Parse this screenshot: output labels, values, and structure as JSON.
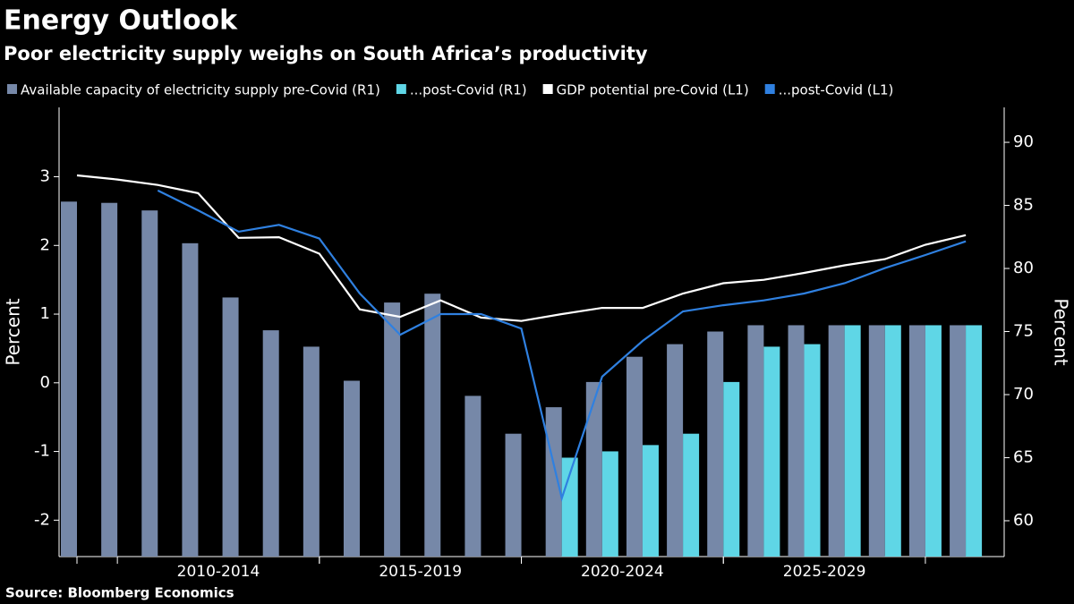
{
  "chart_data": {
    "type": "bar_line",
    "title": "Energy Outlook",
    "subtitle": "Poor electricity supply weighs on South Africa’s productivity",
    "source": "Source: Bloomberg Economics",
    "ylabel": "Percent",
    "y2label": "Percent",
    "categories": [
      null,
      null,
      null,
      null,
      null,
      null,
      null,
      null,
      null,
      null,
      null,
      null,
      null,
      null,
      null,
      null,
      null,
      null,
      null,
      null,
      null,
      null,
      null
    ],
    "x_groups": [
      "2010-2014",
      "2015-2019",
      "2020-2024",
      "2025-2029"
    ],
    "series": [
      {
        "name": "Available capacity of electricity supply pre-Covid (R1)",
        "kind": "bar",
        "axis": "y2",
        "color": "#7688a8",
        "values": [
          85.3,
          85.2,
          84.6,
          82.0,
          77.7,
          75.1,
          73.8,
          71.1,
          77.3,
          78.0,
          69.9,
          66.9,
          69.0,
          71.0,
          73.0,
          74.0,
          75.0,
          75.5,
          75.5,
          75.5,
          75.5,
          75.5,
          75.5
        ]
      },
      {
        "name": "...post-Covid (R1)",
        "kind": "bar",
        "axis": "y2",
        "color": "#5fd6e6",
        "values": [
          null,
          null,
          null,
          null,
          null,
          null,
          null,
          null,
          null,
          null,
          null,
          null,
          65.0,
          65.5,
          66.0,
          66.9,
          71.0,
          73.8,
          74.0,
          75.5,
          75.5,
          75.5,
          75.5
        ]
      },
      {
        "name": "GDP potential pre-Covid (L1)",
        "kind": "line",
        "color": "#ffffff",
        "values": [
          3.02,
          2.96,
          2.88,
          2.76,
          2.11,
          2.12,
          1.88,
          1.07,
          0.96,
          1.2,
          0.95,
          0.9,
          1.0,
          1.09,
          1.09,
          1.3,
          1.45,
          1.5,
          1.6,
          1.71,
          1.8,
          2.01,
          2.15
        ]
      },
      {
        "name": "...post-Covid (L1)",
        "kind": "line",
        "color": "#2f80e0",
        "values": [
          null,
          null,
          2.8,
          2.51,
          2.2,
          2.3,
          2.1,
          1.3,
          0.7,
          1.0,
          1.0,
          0.79,
          -1.68,
          0.09,
          0.61,
          1.04,
          1.13,
          1.2,
          1.3,
          1.45,
          1.67,
          1.86,
          2.06
        ]
      }
    ],
    "ylim": [
      -2.53,
      4.01
    ],
    "yticks": [
      -2,
      -1,
      0,
      1,
      2,
      3
    ],
    "y2lim": [
      57.16,
      92.77
    ],
    "y2ticks": [
      60,
      65,
      70,
      75,
      80,
      85,
      90
    ]
  }
}
